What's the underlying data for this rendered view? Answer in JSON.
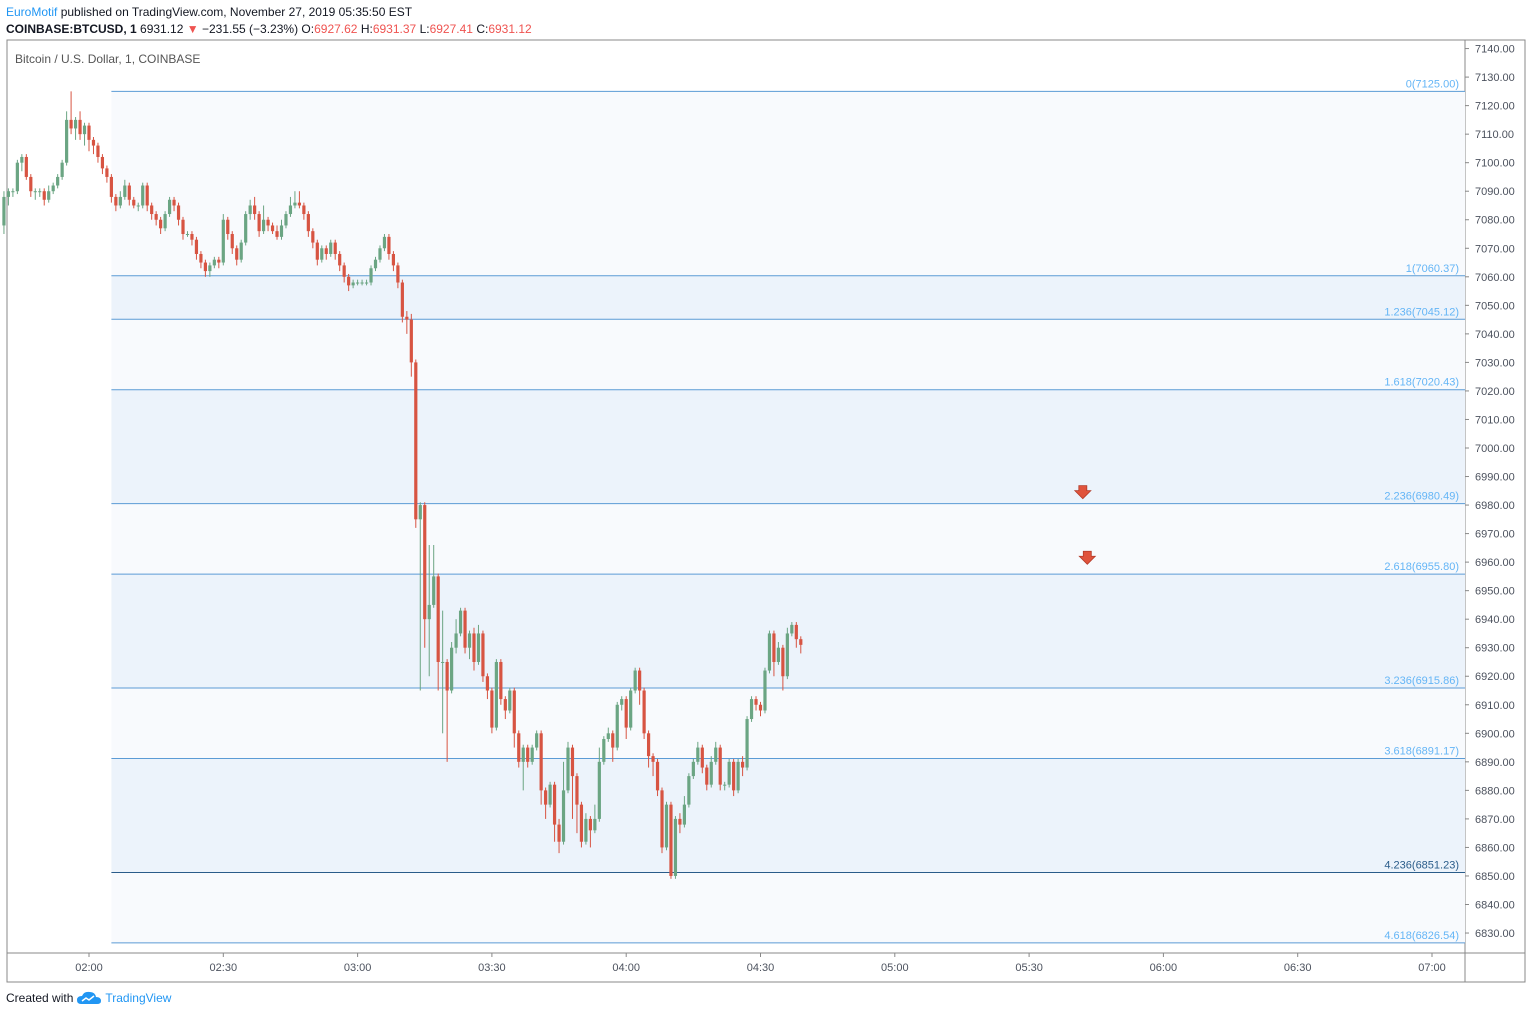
{
  "header": {
    "author": "EuroMotif",
    "published": "published on TradingView.com, November 27, 2019 05:35:50 EST",
    "symbol_line": "COINBASE:BTCUSD, 1",
    "last": "6931.12",
    "change": "−231.55 (−3.23%)",
    "o_label": "O:",
    "o": "6927.62",
    "h_label": "H:",
    "h": "6931.37",
    "l_label": "L:",
    "l": "6927.41",
    "c_label": "C:",
    "c": "6931.12"
  },
  "footer": {
    "created_with": "Created with",
    "brand": "TradingView"
  },
  "colors": {
    "up": "#6ba583",
    "down": "#d75442",
    "fib_line": "#5b9bd5",
    "fib_band": "#f2f6fc",
    "fib_label": "#64b5f6",
    "arrow": "#e0533c"
  },
  "chart_data": {
    "type": "candlestick",
    "title": "Bitcoin / U.S. Dollar, 1, COINBASE",
    "y_ticks": [
      "7140.00",
      "7130.00",
      "7120.00",
      "7110.00",
      "7100.00",
      "7090.00",
      "7080.00",
      "7070.00",
      "7060.00",
      "7050.00",
      "7040.00",
      "7030.00",
      "7020.00",
      "7010.00",
      "7000.00",
      "6990.00",
      "6980.00",
      "6970.00",
      "6960.00",
      "6950.00",
      "6940.00",
      "6930.00",
      "6920.00",
      "6910.00",
      "6900.00",
      "6890.00",
      "6880.00",
      "6870.00",
      "6860.00",
      "6850.00",
      "6840.00",
      "6830.00"
    ],
    "x_ticks": [
      "02:00",
      "02:30",
      "03:00",
      "03:30",
      "04:00",
      "04:30",
      "05:00",
      "05:30",
      "06:00",
      "06:30",
      "07:00"
    ],
    "ylim": [
      6823,
      7143
    ],
    "fib_levels": [
      {
        "label": "0(7125.00)",
        "price": 7125.0
      },
      {
        "label": "1(7060.37)",
        "price": 7060.37
      },
      {
        "label": "1.236(7045.12)",
        "price": 7045.12
      },
      {
        "label": "1.618(7020.43)",
        "price": 7020.43
      },
      {
        "label": "2.236(6980.49)",
        "price": 6980.49
      },
      {
        "label": "2.618(6955.80)",
        "price": 6955.8
      },
      {
        "label": "3.236(6915.86)",
        "price": 6915.86
      },
      {
        "label": "3.618(6891.17)",
        "price": 6891.17
      },
      {
        "label": "4.236(6851.23)",
        "price": 6851.23
      },
      {
        "label": "4.618(6826.54)",
        "price": 6826.54
      }
    ],
    "arrows": [
      {
        "time": "05:42",
        "price": 6984
      },
      {
        "time": "05:43",
        "price": 6961
      }
    ],
    "candles": [
      [
        7078,
        7088,
        7075,
        7090
      ],
      [
        7088,
        7090,
        7085,
        7091
      ],
      [
        7090,
        7090,
        7088,
        7091
      ],
      [
        7090,
        7100,
        7089,
        7101
      ],
      [
        7100,
        7102,
        7097,
        7103
      ],
      [
        7102,
        7095,
        7094,
        7103
      ],
      [
        7095,
        7090,
        7088,
        7096
      ],
      [
        7090,
        7090,
        7087,
        7091
      ],
      [
        7090,
        7090,
        7088,
        7091
      ],
      [
        7090,
        7087,
        7085,
        7091
      ],
      [
        7087,
        7090,
        7086,
        7092
      ],
      [
        7090,
        7092,
        7089,
        7093
      ],
      [
        7092,
        7095,
        7091,
        7096
      ],
      [
        7095,
        7100,
        7094,
        7101
      ],
      [
        7100,
        7115,
        7099,
        7118
      ],
      [
        7115,
        7112,
        7110,
        7125
      ],
      [
        7112,
        7115,
        7108,
        7116
      ],
      [
        7115,
        7110,
        7108,
        7118
      ],
      [
        7110,
        7113,
        7106,
        7114
      ],
      [
        7113,
        7108,
        7104,
        7114
      ],
      [
        7108,
        7106,
        7103,
        7109
      ],
      [
        7106,
        7102,
        7100,
        7107
      ],
      [
        7102,
        7098,
        7096,
        7103
      ],
      [
        7098,
        7095,
        7093,
        7099
      ],
      [
        7095,
        7088,
        7086,
        7096
      ],
      [
        7088,
        7085,
        7083,
        7089
      ],
      [
        7085,
        7088,
        7084,
        7090
      ],
      [
        7088,
        7092,
        7087,
        7094
      ],
      [
        7092,
        7087,
        7085,
        7093
      ],
      [
        7087,
        7085,
        7084,
        7088
      ],
      [
        7085,
        7085,
        7083,
        7086
      ],
      [
        7085,
        7092,
        7084,
        7093
      ],
      [
        7092,
        7085,
        7083,
        7093
      ],
      [
        7085,
        7082,
        7080,
        7086
      ],
      [
        7082,
        7080,
        7078,
        7083
      ],
      [
        7080,
        7077,
        7075,
        7081
      ],
      [
        7077,
        7082,
        7076,
        7083
      ],
      [
        7082,
        7087,
        7081,
        7088
      ],
      [
        7087,
        7085,
        7083,
        7088
      ],
      [
        7085,
        7080,
        7078,
        7086
      ],
      [
        7080,
        7075,
        7073,
        7081
      ],
      [
        7075,
        7075,
        7074,
        7076
      ],
      [
        7075,
        7073,
        7071,
        7076
      ],
      [
        7073,
        7068,
        7066,
        7074
      ],
      [
        7068,
        7065,
        7063,
        7069
      ],
      [
        7065,
        7062,
        7060,
        7066
      ],
      [
        7062,
        7064,
        7060,
        7065
      ],
      [
        7064,
        7066,
        7063,
        7067
      ],
      [
        7066,
        7065,
        7063,
        7067
      ],
      [
        7065,
        7080,
        7064,
        7082
      ],
      [
        7080,
        7075,
        7073,
        7081
      ],
      [
        7075,
        7070,
        7068,
        7076
      ],
      [
        7070,
        7066,
        7064,
        7071
      ],
      [
        7066,
        7072,
        7065,
        7073
      ],
      [
        7072,
        7082,
        7071,
        7083
      ],
      [
        7082,
        7085,
        7080,
        7087
      ],
      [
        7085,
        7082,
        7080,
        7088
      ],
      [
        7082,
        7076,
        7074,
        7083
      ],
      [
        7076,
        7080,
        7075,
        7085
      ],
      [
        7080,
        7078,
        7076,
        7081
      ],
      [
        7078,
        7076,
        7075,
        7079
      ],
      [
        7076,
        7074,
        7073,
        7078
      ],
      [
        7074,
        7078,
        7073,
        7080
      ],
      [
        7078,
        7082,
        7077,
        7083
      ],
      [
        7082,
        7085,
        7081,
        7088
      ],
      [
        7085,
        7086,
        7084,
        7090
      ],
      [
        7086,
        7085,
        7084,
        7090
      ],
      [
        7085,
        7082,
        7080,
        7086
      ],
      [
        7082,
        7076,
        7074,
        7083
      ],
      [
        7076,
        7072,
        7070,
        7077
      ],
      [
        7072,
        7066,
        7064,
        7073
      ],
      [
        7066,
        7070,
        7065,
        7071
      ],
      [
        7070,
        7068,
        7066,
        7071
      ],
      [
        7068,
        7072,
        7067,
        7073
      ],
      [
        7072,
        7068,
        7066,
        7073
      ],
      [
        7068,
        7064,
        7062,
        7069
      ],
      [
        7064,
        7060,
        7058,
        7065
      ],
      [
        7060,
        7057,
        7055,
        7061
      ],
      [
        7057,
        7058,
        7056,
        7059
      ],
      [
        7058,
        7058,
        7057,
        7059
      ],
      [
        7058,
        7058,
        7057,
        7059
      ],
      [
        7058,
        7058,
        7057,
        7059
      ],
      [
        7058,
        7063,
        7057,
        7064
      ],
      [
        7063,
        7066,
        7062,
        7067
      ],
      [
        7066,
        7070,
        7065,
        7071
      ],
      [
        7070,
        7074,
        7069,
        7075
      ],
      [
        7074,
        7068,
        7066,
        7075
      ],
      [
        7068,
        7064,
        7062,
        7069
      ],
      [
        7064,
        7058,
        7056,
        7065
      ],
      [
        7058,
        7046,
        7044,
        7059
      ],
      [
        7046,
        7045,
        7040,
        7048
      ],
      [
        7045,
        7030,
        7025,
        7047
      ],
      [
        7030,
        6975,
        6972,
        7031
      ],
      [
        6975,
        6980,
        6915,
        6981
      ],
      [
        6980,
        6940,
        6930,
        6981
      ],
      [
        6940,
        6945,
        6920,
        6966
      ],
      [
        6945,
        6955,
        6944,
        6966
      ],
      [
        6955,
        6925,
        6915,
        6956
      ],
      [
        6925,
        6925,
        6900,
        6943
      ],
      [
        6925,
        6915,
        6890,
        6926
      ],
      [
        6915,
        6930,
        6914,
        6932
      ],
      [
        6930,
        6935,
        6928,
        6940
      ],
      [
        6935,
        6943,
        6934,
        6944
      ],
      [
        6943,
        6930,
        6928,
        6944
      ],
      [
        6930,
        6935,
        6926,
        6936
      ],
      [
        6935,
        6925,
        6922,
        6937
      ],
      [
        6925,
        6935,
        6924,
        6938
      ],
      [
        6935,
        6920,
        6918,
        6936
      ],
      [
        6920,
        6915,
        6912,
        6921
      ],
      [
        6915,
        6902,
        6900,
        6916
      ],
      [
        6902,
        6925,
        6901,
        6926
      ],
      [
        6925,
        6912,
        6910,
        6926
      ],
      [
        6912,
        6908,
        6905,
        6913
      ],
      [
        6908,
        6915,
        6907,
        6916
      ],
      [
        6915,
        6900,
        6895,
        6916
      ],
      [
        6900,
        6890,
        6888,
        6901
      ],
      [
        6890,
        6895,
        6880,
        6896
      ],
      [
        6895,
        6890,
        6888,
        6896
      ],
      [
        6890,
        6895,
        6889,
        6896
      ],
      [
        6895,
        6900,
        6894,
        6901
      ],
      [
        6900,
        6880,
        6875,
        6901
      ],
      [
        6880,
        6875,
        6870,
        6881
      ],
      [
        6875,
        6882,
        6874,
        6883
      ],
      [
        6882,
        6868,
        6862,
        6883
      ],
      [
        6868,
        6862,
        6858,
        6870
      ],
      [
        6862,
        6880,
        6861,
        6890
      ],
      [
        6880,
        6895,
        6879,
        6897
      ],
      [
        6895,
        6885,
        6870,
        6896
      ],
      [
        6885,
        6875,
        6865,
        6886
      ],
      [
        6875,
        6862,
        6860,
        6876
      ],
      [
        6862,
        6870,
        6861,
        6872
      ],
      [
        6870,
        6866,
        6860,
        6871
      ],
      [
        6866,
        6870,
        6865,
        6875
      ],
      [
        6870,
        6890,
        6869,
        6895
      ],
      [
        6890,
        6898,
        6889,
        6899
      ],
      [
        6898,
        6900,
        6897,
        6902
      ],
      [
        6900,
        6895,
        6890,
        6901
      ],
      [
        6895,
        6910,
        6894,
        6911
      ],
      [
        6910,
        6912,
        6908,
        6913
      ],
      [
        6912,
        6902,
        6898,
        6913
      ],
      [
        6902,
        6915,
        6901,
        6916
      ],
      [
        6915,
        6922,
        6914,
        6923
      ],
      [
        6922,
        6915,
        6910,
        6923
      ],
      [
        6915,
        6900,
        6898,
        6916
      ],
      [
        6900,
        6892,
        6888,
        6901
      ],
      [
        6892,
        6890,
        6885,
        6893
      ],
      [
        6890,
        6880,
        6878,
        6891
      ],
      [
        6880,
        6860,
        6858,
        6881
      ],
      [
        6860,
        6875,
        6859,
        6876
      ],
      [
        6875,
        6850,
        6849,
        6876
      ],
      [
        6850,
        6870,
        6849,
        6871
      ],
      [
        6870,
        6868,
        6865,
        6872
      ],
      [
        6868,
        6875,
        6867,
        6878
      ],
      [
        6875,
        6885,
        6874,
        6886
      ],
      [
        6885,
        6890,
        6884,
        6891
      ],
      [
        6890,
        6895,
        6889,
        6897
      ],
      [
        6895,
        6888,
        6886,
        6896
      ],
      [
        6888,
        6882,
        6880,
        6889
      ],
      [
        6882,
        6890,
        6881,
        6892
      ],
      [
        6890,
        6895,
        6889,
        6897
      ],
      [
        6895,
        6882,
        6880,
        6896
      ],
      [
        6882,
        6882,
        6880,
        6883
      ],
      [
        6882,
        6890,
        6881,
        6891
      ],
      [
        6890,
        6880,
        6878,
        6891
      ],
      [
        6880,
        6890,
        6879,
        6891
      ],
      [
        6890,
        6888,
        6885,
        6892
      ],
      [
        6888,
        6905,
        6887,
        6906
      ],
      [
        6905,
        6912,
        6904,
        6913
      ],
      [
        6912,
        6910,
        6908,
        6913
      ],
      [
        6910,
        6908,
        6906,
        6911
      ],
      [
        6908,
        6922,
        6907,
        6923
      ],
      [
        6922,
        6935,
        6921,
        6936
      ],
      [
        6935,
        6925,
        6920,
        6936
      ],
      [
        6925,
        6930,
        6924,
        6932
      ],
      [
        6930,
        6920,
        6915,
        6931
      ],
      [
        6920,
        6935,
        6919,
        6937
      ],
      [
        6935,
        6938,
        6934,
        6939
      ],
      [
        6938,
        6933,
        6930,
        6939
      ],
      [
        6933,
        6931,
        6928,
        6934
      ]
    ]
  }
}
